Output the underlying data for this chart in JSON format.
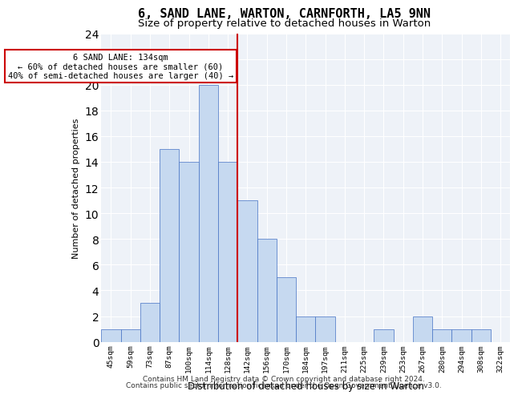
{
  "title_line1": "6, SAND LANE, WARTON, CARNFORTH, LA5 9NN",
  "title_line2": "Size of property relative to detached houses in Warton",
  "xlabel": "Distribution of detached houses by size in Warton",
  "ylabel": "Number of detached properties",
  "bar_labels": [
    "45sqm",
    "59sqm",
    "73sqm",
    "87sqm",
    "100sqm",
    "114sqm",
    "128sqm",
    "142sqm",
    "156sqm",
    "170sqm",
    "184sqm",
    "197sqm",
    "211sqm",
    "225sqm",
    "239sqm",
    "253sqm",
    "267sqm",
    "280sqm",
    "294sqm",
    "308sqm",
    "322sqm"
  ],
  "bar_values": [
    1,
    1,
    3,
    15,
    14,
    20,
    14,
    11,
    8,
    5,
    2,
    2,
    0,
    0,
    1,
    0,
    2,
    1,
    1,
    1,
    0
  ],
  "bar_color": "#c6d9f0",
  "bar_edge_color": "#4472c4",
  "background_color": "#eef2f8",
  "grid_color": "#ffffff",
  "vline_x": 7,
  "vline_color": "#cc0000",
  "annotation_text": "6 SAND LANE: 134sqm\n← 60% of detached houses are smaller (60)\n40% of semi-detached houses are larger (40) →",
  "annotation_box_color": "#ffffff",
  "annotation_box_edge_color": "#cc0000",
  "ylim": [
    0,
    24
  ],
  "yticks": [
    0,
    2,
    4,
    6,
    8,
    10,
    12,
    14,
    16,
    18,
    20,
    22,
    24
  ],
  "footer_line1": "Contains HM Land Registry data © Crown copyright and database right 2024.",
  "footer_line2": "Contains public sector information licensed under the Open Government Licence v3.0."
}
